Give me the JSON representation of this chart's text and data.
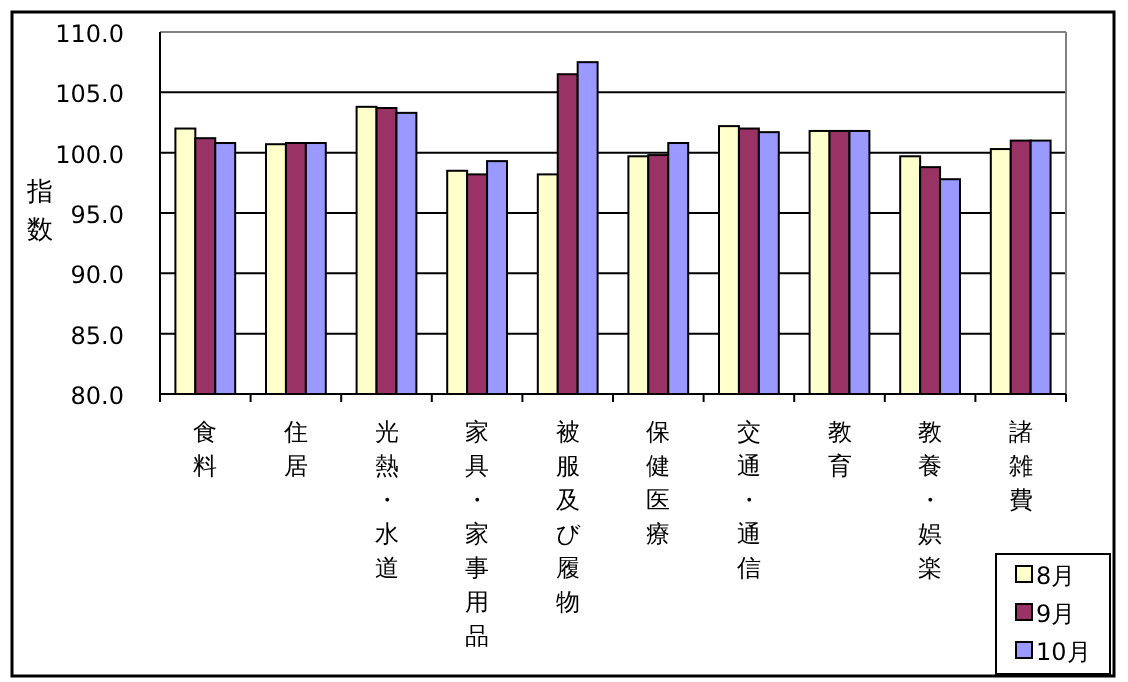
{
  "chart_data": {
    "type": "bar",
    "ylabel": "指数",
    "categories": [
      "食料",
      "住居",
      "光熱・水道",
      "家具・家事用品",
      "被服及び履物",
      "保健医療",
      "交通・通信",
      "教育",
      "教養・娯楽",
      "諸雑費"
    ],
    "series": [
      {
        "name": "8月",
        "color": "#ffffcc",
        "values": [
          102.0,
          100.7,
          103.8,
          98.5,
          98.2,
          99.7,
          102.2,
          101.8,
          99.7,
          100.3
        ]
      },
      {
        "name": "9月",
        "color": "#993366",
        "values": [
          101.2,
          100.8,
          103.7,
          98.2,
          106.5,
          99.8,
          102.0,
          101.8,
          98.8,
          101.0
        ]
      },
      {
        "name": "10月",
        "color": "#9999ff",
        "values": [
          100.8,
          100.8,
          103.3,
          99.3,
          107.5,
          100.8,
          101.7,
          101.8,
          97.8,
          101.0
        ]
      }
    ],
    "ylim": [
      80,
      110
    ],
    "yticks": [
      {
        "value": 80,
        "label": "80.0"
      },
      {
        "value": 85,
        "label": "85.0"
      },
      {
        "value": 90,
        "label": "90.0"
      },
      {
        "value": 95,
        "label": "95.0"
      },
      {
        "value": 100,
        "label": "100.0"
      },
      {
        "value": 105,
        "label": "105.0"
      },
      {
        "value": 110,
        "label": "110.0"
      }
    ],
    "grid": "y",
    "legend": "bottom right"
  }
}
